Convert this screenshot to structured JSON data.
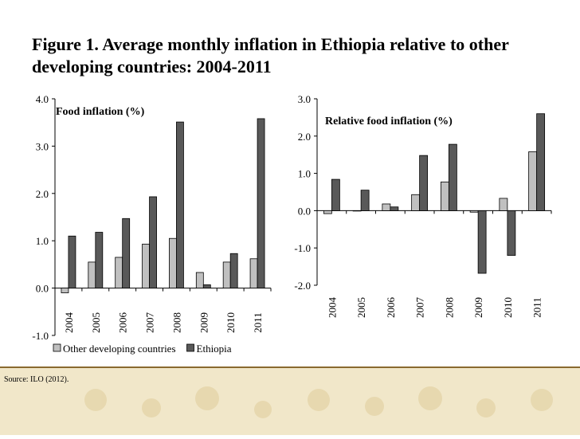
{
  "title": "Figure 1. Average monthly inflation in Ethiopia relative to other developing countries: 2004-2011",
  "source": "Source: ILO (2012).",
  "chart_data": [
    {
      "type": "bar",
      "title": "Food inflation (%)",
      "categories": [
        "2004",
        "2005",
        "2006",
        "2007",
        "2008",
        "2009",
        "2010",
        "2011"
      ],
      "ylim": [
        -1.0,
        4.0
      ],
      "yticks": [
        "4.0",
        "3.0",
        "2.0",
        "1.0",
        "0.0",
        "-1.0"
      ],
      "yticks_values": [
        4.0,
        3.0,
        2.0,
        1.0,
        0.0,
        -1.0
      ],
      "grid": false,
      "legend_position": "bottom",
      "series": [
        {
          "name": "Other developing countries",
          "color": "#c0c0c0",
          "values": [
            -0.1,
            0.55,
            0.65,
            0.93,
            1.05,
            0.33,
            0.55,
            0.62
          ]
        },
        {
          "name": "Ethiopia",
          "color": "#595959",
          "values": [
            1.1,
            1.18,
            1.47,
            1.93,
            3.51,
            0.07,
            0.73,
            3.58
          ]
        }
      ]
    },
    {
      "type": "bar",
      "title": "Relative food inflation (%)",
      "categories": [
        "2004",
        "2005",
        "2006",
        "2007",
        "2008",
        "2009",
        "2010",
        "2011"
      ],
      "ylim": [
        -2.0,
        3.0
      ],
      "yticks": [
        "3.0",
        "2.0",
        "1.0",
        "0.0",
        "-1.0",
        "-2.0"
      ],
      "yticks_values": [
        3.0,
        2.0,
        1.0,
        0.0,
        -1.0,
        -2.0
      ],
      "grid": false,
      "series": [
        {
          "color": "#c0c0c0",
          "values": [
            -0.08,
            0.0,
            0.18,
            0.43,
            0.77,
            -0.04,
            0.33,
            1.58
          ]
        },
        {
          "color": "#595959",
          "values": [
            0.84,
            0.55,
            0.1,
            1.48,
            1.78,
            -1.68,
            -1.2,
            2.6
          ]
        }
      ]
    }
  ]
}
